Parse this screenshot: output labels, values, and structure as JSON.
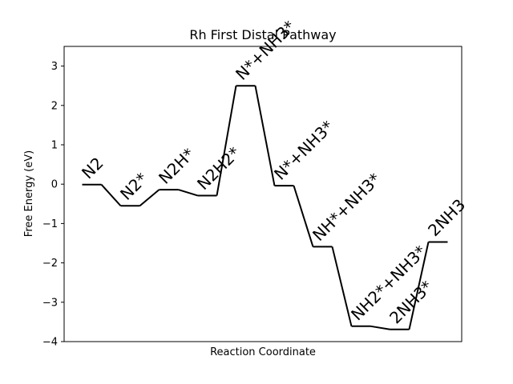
{
  "chart_data": {
    "type": "line",
    "title": "Rh First Distal Pathway",
    "xlabel": "Reaction Coordinate",
    "ylabel": "Free Energy (eV)",
    "ylim": [
      -4,
      3.5
    ],
    "yticks": [
      3,
      2,
      1,
      0,
      -1,
      -2,
      -3,
      -4
    ],
    "ytick_labels": [
      "3",
      "2",
      "1",
      "0",
      "−1",
      "−2",
      "−3",
      "−4"
    ],
    "grid": false,
    "line_color": "#000000",
    "states": [
      {
        "label": "N2",
        "energy": -0.01
      },
      {
        "label": "N2*",
        "energy": -0.55
      },
      {
        "label": "N2H*",
        "energy": -0.14
      },
      {
        "label": "N2H2*",
        "energy": -0.29
      },
      {
        "label": "N*+NH3*",
        "energy": 2.5
      },
      {
        "label": "N*+NH3*",
        "energy": -0.04
      },
      {
        "label": "NH*+NH3*",
        "energy": -1.59
      },
      {
        "label": "NH2*+NH3*",
        "energy": -3.61
      },
      {
        "label": "2NH3*",
        "energy": -3.69
      },
      {
        "label": "2NH3",
        "energy": -1.47
      }
    ]
  }
}
